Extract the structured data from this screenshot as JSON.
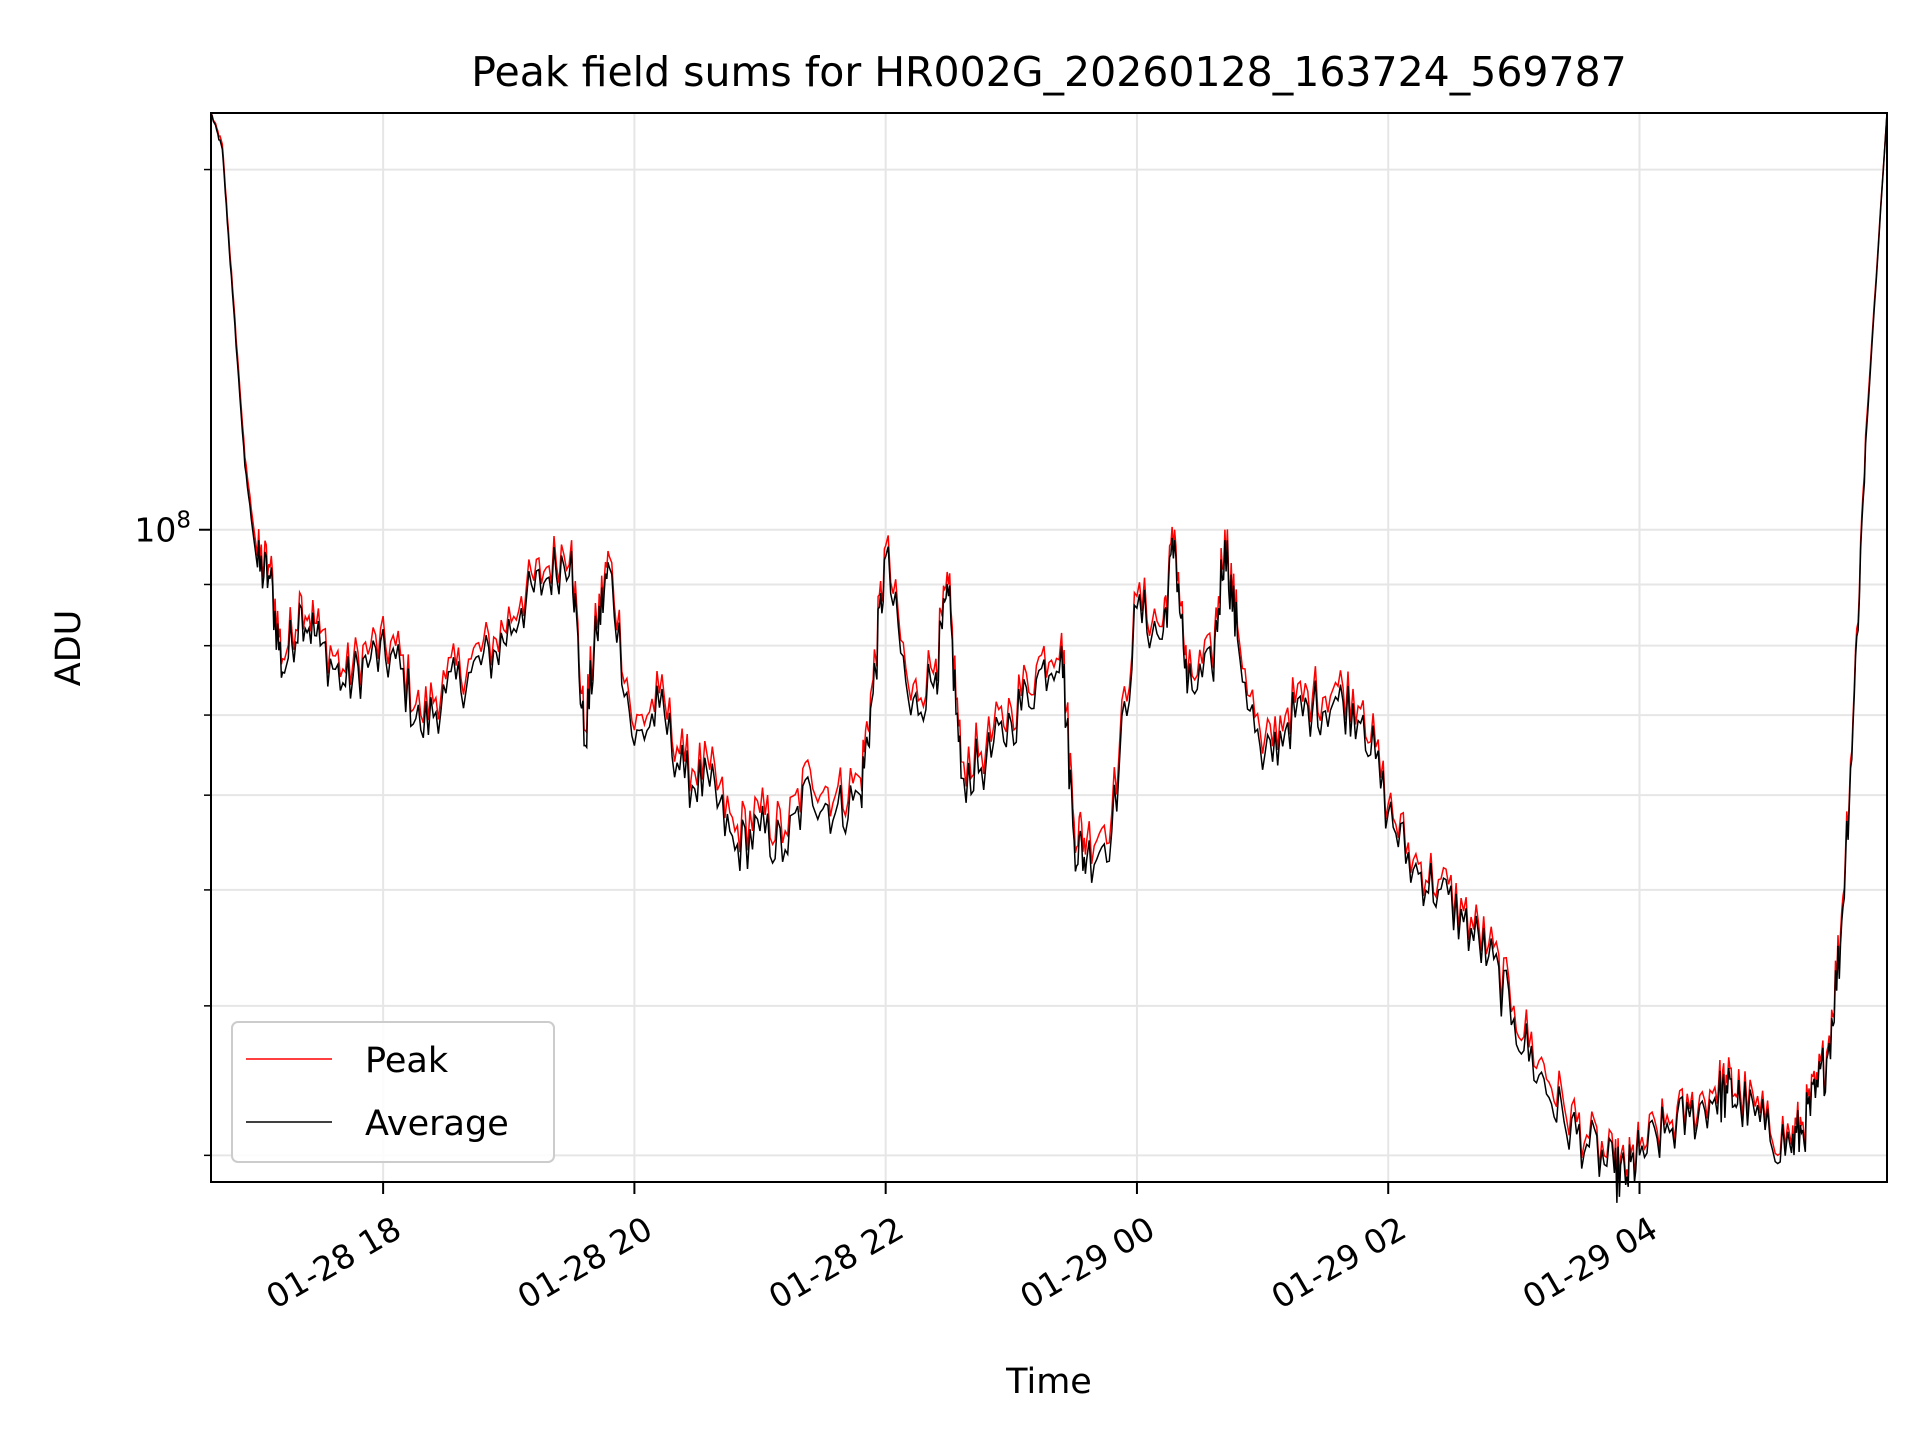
{
  "chart_data": {
    "type": "line",
    "title": "Peak field sums for HR002G_20260128_163724_569787",
    "xlabel": "Time",
    "ylabel": "ADU",
    "yscale": "log",
    "ylim": [
      28500000.0,
      223000000.0
    ],
    "xlim_hours": [
      16.63,
      5.97
    ],
    "grid": true,
    "legend_position": "lower-left",
    "x_ticks": [
      {
        "hour": 18,
        "label": "01-28 18"
      },
      {
        "hour": 20,
        "label": "01-28 20"
      },
      {
        "hour": 22,
        "label": "01-28 22"
      },
      {
        "hour": 24,
        "label": "01-29 00"
      },
      {
        "hour": 26,
        "label": "01-29 02"
      },
      {
        "hour": 28,
        "label": "01-29 04"
      }
    ],
    "y_major_ticks": [
      {
        "value": 100000000,
        "base": "10",
        "exponent": "8"
      }
    ],
    "y_minor_ticks": [
      30000000,
      40000000,
      50000000,
      60000000,
      70000000,
      80000000,
      90000000,
      200000000
    ],
    "x_hours_after_midnight_jan28": [
      16.63,
      16.72,
      16.8,
      16.9,
      17.0,
      17.1,
      17.2,
      17.35,
      17.5,
      17.7,
      17.9,
      18.1,
      18.3,
      18.5,
      18.7,
      18.9,
      19.1,
      19.3,
      19.5,
      19.6,
      19.7,
      19.8,
      20.0,
      20.2,
      20.4,
      20.6,
      20.8,
      21.0,
      21.2,
      21.4,
      21.6,
      21.8,
      21.9,
      22.0,
      22.2,
      22.4,
      22.5,
      22.6,
      22.8,
      23.0,
      23.2,
      23.4,
      23.5,
      23.6,
      23.8,
      24.0,
      24.2,
      24.3,
      24.4,
      24.6,
      24.7,
      24.8,
      25.0,
      25.2,
      25.4,
      25.6,
      25.8,
      26.0,
      26.2,
      26.4,
      26.6,
      26.8,
      27.0,
      27.2,
      27.4,
      27.6,
      27.8,
      27.9,
      28.0,
      28.2,
      28.4,
      28.6,
      28.7,
      28.8,
      29.0,
      29.2,
      29.3,
      29.4,
      29.5,
      29.6,
      29.7,
      29.8,
      29.97
    ],
    "series": [
      {
        "name": "Peak",
        "color": "#ff0000",
        "values": [
          223000000,
          210000000,
          160000000,
          115000000,
          95000000,
          93000000,
          78000000,
          88000000,
          82000000,
          76000000,
          80000000,
          80000000,
          70000000,
          75000000,
          78000000,
          81000000,
          88000000,
          93000000,
          98000000,
          68000000,
          84000000,
          95000000,
          68000000,
          73000000,
          64000000,
          63000000,
          56000000,
          58000000,
          56000000,
          63000000,
          60000000,
          62000000,
          75000000,
          97000000,
          72000000,
          78000000,
          90000000,
          64000000,
          66000000,
          71000000,
          77000000,
          82000000,
          57000000,
          55000000,
          58000000,
          88000000,
          83000000,
          100000000,
          75000000,
          78000000,
          100000000,
          83000000,
          65000000,
          71000000,
          73000000,
          74000000,
          72000000,
          59000000,
          53000000,
          51000000,
          48000000,
          45000000,
          40000000,
          36000000,
          33000000,
          31000000,
          29500000,
          29200000,
          30500000,
          31800000,
          32800000,
          34200000,
          34500000,
          34000000,
          32000000,
          31000000,
          32000000,
          34000000,
          37000000,
          46000000,
          70000000,
          120000000,
          223000000
        ]
      },
      {
        "name": "Average",
        "color": "#000000",
        "values": [
          223000000,
          208000000,
          158000000,
          113000000,
          93000000,
          91000000,
          76000000,
          86000000,
          80000000,
          74000000,
          78000000,
          78000000,
          68000000,
          73000000,
          76000000,
          79000000,
          86000000,
          91000000,
          96000000,
          66000000,
          82000000,
          93000000,
          66000000,
          71000000,
          62000000,
          61000000,
          54000000,
          56000000,
          54000000,
          61000000,
          58000000,
          60000000,
          73000000,
          95000000,
          70000000,
          76000000,
          88000000,
          62000000,
          64000000,
          69000000,
          75000000,
          80000000,
          55000000,
          53000000,
          56000000,
          86000000,
          81000000,
          98000000,
          73000000,
          76000000,
          98000000,
          81000000,
          63000000,
          69000000,
          71000000,
          72000000,
          70000000,
          58000000,
          52000000,
          50000000,
          47000000,
          44000000,
          39000000,
          35000000,
          32000000,
          30500000,
          29000000,
          28800000,
          30000000,
          31300000,
          32300000,
          33500000,
          33800000,
          33300000,
          31500000,
          30500000,
          31500000,
          33500000,
          36500000,
          45000000,
          69000000,
          118000000,
          223000000
        ]
      }
    ]
  }
}
